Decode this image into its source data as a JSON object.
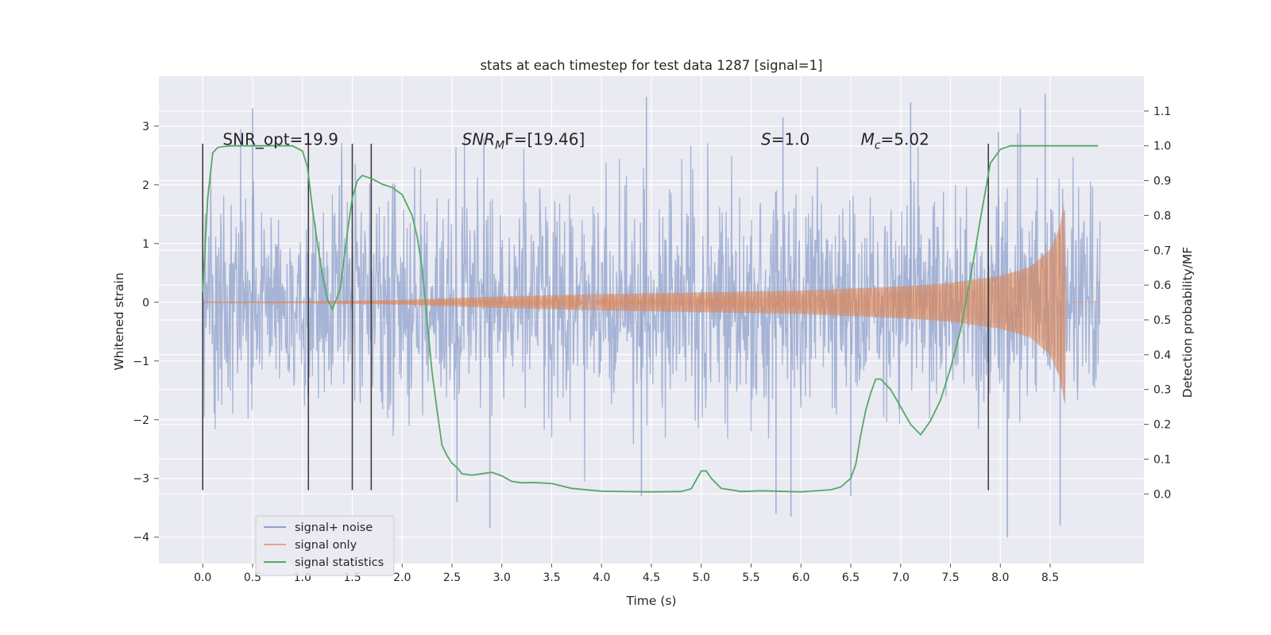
{
  "chart_data": {
    "type": "line",
    "title": "stats at each timestep for test data 1287 [signal=1]",
    "xlabel": "Time (s)",
    "ylabel_left": "Whitened strain",
    "ylabel_right": "Detection probability/MF",
    "xlim": [
      -0.44,
      9.44
    ],
    "ylim_left": [
      -4.45,
      3.85
    ],
    "ylim_right": [
      -0.2,
      1.2
    ],
    "x_ticks": [
      0.0,
      0.5,
      1.0,
      1.5,
      2.0,
      2.5,
      3.0,
      3.5,
      4.0,
      4.5,
      5.0,
      5.5,
      6.0,
      6.5,
      7.0,
      7.5,
      8.0,
      8.5
    ],
    "x_tick_labels": [
      "0.0",
      "0.5",
      "1.0",
      "1.5",
      "2.0",
      "2.5",
      "3.0",
      "3.5",
      "4.0",
      "4.5",
      "5.0",
      "5.5",
      "6.0",
      "6.5",
      "7.0",
      "7.5",
      "8.0",
      "8.5"
    ],
    "y_left_ticks": [
      3,
      2,
      1,
      0,
      -1,
      -2,
      -3,
      -4
    ],
    "y_left_tick_labels": [
      "3",
      "2",
      "1",
      "0",
      "−1",
      "−2",
      "−3",
      "−4"
    ],
    "y_right_ticks": [
      1.1,
      1.0,
      0.9,
      0.8,
      0.7,
      0.6,
      0.5,
      0.4,
      0.3,
      0.2,
      0.1,
      0.0
    ],
    "y_right_tick_labels": [
      "1.1",
      "1.0",
      "0.9",
      "0.8",
      "0.7",
      "0.6",
      "0.5",
      "0.4",
      "0.3",
      "0.2",
      "0.1",
      "0.0"
    ],
    "grid": true,
    "background": "#eaeaf2",
    "annotations": [
      {
        "id": "snr_opt",
        "text": "SNR_opt=19.9",
        "x": 0.2,
        "y_right": 1.0,
        "italic": false
      },
      {
        "id": "snr_mf",
        "text": "SNR",
        "sub": "M",
        "suffix": "F=[19.46]",
        "x": 2.6,
        "y_right": 1.0,
        "italic": true
      },
      {
        "id": "s_val",
        "text": "S",
        "suffix": "=1.0",
        "x": 5.6,
        "y_right": 1.0,
        "italic": true
      },
      {
        "id": "mc_val",
        "text": "M",
        "sub": "c",
        "suffix": "=5.02",
        "x": 6.6,
        "y_right": 1.0,
        "italic": true
      }
    ],
    "vlines": {
      "x": [
        0.0,
        1.06,
        1.5,
        1.69,
        7.88
      ],
      "y_range_left": [
        -3.2,
        2.7
      ],
      "color": "#3f3f3f"
    },
    "series": [
      {
        "name": "signal+ noise",
        "color": "#8da0cb",
        "axis": "left",
        "x_range": [
          0.0,
          9.0
        ],
        "description": "whitened noisy strain, dense fluctuation roughly between -3.9 and 3.5",
        "spikes_up": [
          [
            0.5,
            3.3
          ],
          [
            2.82,
            2.8
          ],
          [
            4.45,
            3.5
          ],
          [
            5.82,
            3.15
          ],
          [
            7.1,
            3.4
          ],
          [
            8.2,
            3.3
          ],
          [
            8.45,
            3.55
          ],
          [
            7.98,
            2.9
          ]
        ],
        "spikes_down": [
          [
            2.88,
            -3.85
          ],
          [
            4.4,
            -3.3
          ],
          [
            5.75,
            -3.6
          ],
          [
            5.9,
            -3.65
          ],
          [
            6.5,
            -3.3
          ],
          [
            8.07,
            -4.0
          ],
          [
            8.6,
            -3.8
          ],
          [
            2.55,
            -3.4
          ]
        ]
      },
      {
        "name": "signal only",
        "color": "#dd8452",
        "axis": "left",
        "x_range": [
          0.0,
          9.0
        ],
        "merger_time": 8.66,
        "description": "chirp signal with growing amplitude up to ~1.9 at merger (8.66 s)",
        "amplitude_envelope": {
          "x": [
            0.0,
            1.0,
            2.0,
            3.0,
            4.0,
            5.0,
            6.0,
            7.0,
            7.5,
            8.0,
            8.3,
            8.5,
            8.6,
            8.66
          ],
          "y": [
            0.01,
            0.015,
            0.04,
            0.1,
            0.14,
            0.17,
            0.2,
            0.27,
            0.33,
            0.45,
            0.6,
            0.9,
            1.3,
            1.9
          ]
        }
      },
      {
        "name": "signal statistics",
        "color": "#55a868",
        "axis": "right",
        "x": [
          0.0,
          0.05,
          0.1,
          0.15,
          0.2,
          0.3,
          0.5,
          0.7,
          0.9,
          1.0,
          1.05,
          1.1,
          1.15,
          1.2,
          1.25,
          1.3,
          1.38,
          1.45,
          1.5,
          1.55,
          1.6,
          1.65,
          1.7,
          1.8,
          1.9,
          2.0,
          2.1,
          2.15,
          2.2,
          2.25,
          2.3,
          2.35,
          2.4,
          2.45,
          2.5,
          2.55,
          2.6,
          2.7,
          2.8,
          2.9,
          3.0,
          3.1,
          3.2,
          3.3,
          3.5,
          3.7,
          4.0,
          4.5,
          4.8,
          4.9,
          5.0,
          5.05,
          5.1,
          5.2,
          5.4,
          5.6,
          6.0,
          6.3,
          6.4,
          6.5,
          6.55,
          6.6,
          6.65,
          6.7,
          6.75,
          6.8,
          6.9,
          7.0,
          7.1,
          7.2,
          7.3,
          7.4,
          7.5,
          7.6,
          7.7,
          7.8,
          7.9,
          8.0,
          8.1,
          8.3,
          8.5,
          8.7,
          8.9,
          8.98
        ],
        "y": [
          0.58,
          0.85,
          0.98,
          0.995,
          0.998,
          1.0,
          1.0,
          1.0,
          1.0,
          0.985,
          0.94,
          0.82,
          0.72,
          0.63,
          0.56,
          0.53,
          0.59,
          0.75,
          0.85,
          0.9,
          0.915,
          0.91,
          0.905,
          0.89,
          0.88,
          0.86,
          0.8,
          0.74,
          0.65,
          0.5,
          0.35,
          0.24,
          0.14,
          0.11,
          0.088,
          0.076,
          0.058,
          0.054,
          0.058,
          0.062,
          0.052,
          0.036,
          0.032,
          0.033,
          0.03,
          0.016,
          0.008,
          0.006,
          0.007,
          0.015,
          0.066,
          0.066,
          0.045,
          0.016,
          0.007,
          0.009,
          0.006,
          0.012,
          0.02,
          0.045,
          0.085,
          0.17,
          0.24,
          0.29,
          0.33,
          0.33,
          0.3,
          0.25,
          0.2,
          0.17,
          0.21,
          0.27,
          0.36,
          0.47,
          0.62,
          0.79,
          0.95,
          0.99,
          1.0,
          1.0,
          1.0,
          1.0,
          1.0,
          1.0
        ]
      }
    ],
    "legend": {
      "placement": "lower-left",
      "entries": [
        "signal+ noise",
        "signal only",
        "signal statistics"
      ]
    }
  }
}
